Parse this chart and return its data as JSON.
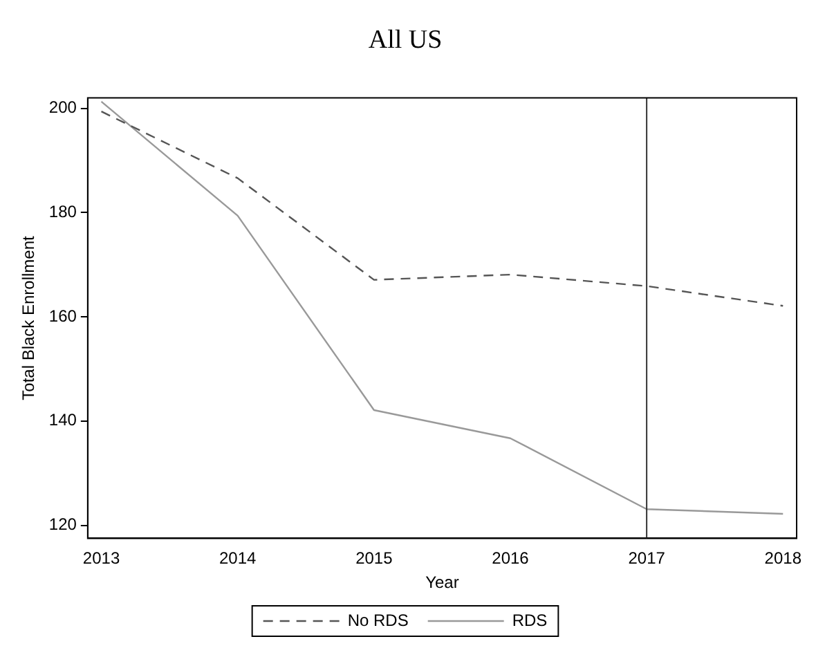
{
  "chart_data": {
    "type": "line",
    "title": "All US",
    "xlabel": "Year",
    "ylabel": "Total Black Enrollment",
    "x": [
      2013,
      2014,
      2015,
      2016,
      2017,
      2018
    ],
    "series": [
      {
        "name": "No RDS",
        "color": "#555555",
        "line_style": "dashed",
        "values": [
          199.4,
          186.6,
          167.1,
          168.1,
          165.9,
          162.1
        ]
      },
      {
        "name": "RDS",
        "color": "#999999",
        "line_style": "solid",
        "values": [
          201.3,
          179.4,
          142.1,
          136.7,
          123.1,
          122.2
        ]
      }
    ],
    "xlim": [
      2012.9,
      2018.1
    ],
    "xticks": [
      2013,
      2014,
      2015,
      2016,
      2017,
      2018
    ],
    "ylim": [
      117.5,
      202
    ],
    "yticks": [
      120,
      140,
      160,
      180,
      200
    ],
    "ref_lines": [
      {
        "axis": "x",
        "value": 2017,
        "color": "#333333"
      }
    ],
    "grid": false,
    "legend": "bottom",
    "marker": "none"
  }
}
